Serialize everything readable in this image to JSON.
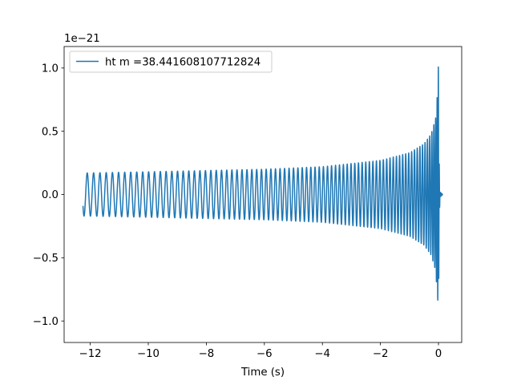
{
  "chart_data": {
    "type": "line",
    "title": "",
    "xlabel": "Time (s)",
    "ylabel": "",
    "y_offset_label": "1e−21",
    "xlim": [
      -12.9,
      0.8
    ],
    "ylim": [
      -1.17,
      1.17
    ],
    "x_ticks": [
      -12,
      -10,
      -8,
      -6,
      -4,
      -2,
      0
    ],
    "x_tick_labels": [
      "−12",
      "−10",
      "−8",
      "−6",
      "−4",
      "−2",
      "0"
    ],
    "y_ticks": [
      -1.0,
      -0.5,
      0.0,
      0.5,
      1.0
    ],
    "y_tick_labels": [
      "−1.0",
      "−0.5",
      "0.0",
      "0.5",
      "1.0"
    ],
    "grid": false,
    "legend_position": "top-left",
    "colors": {
      "series": "#1f77b4",
      "axes": "#000000",
      "background": "#ffffff"
    },
    "series": [
      {
        "name": "ht m =38.441608107712824",
        "color": "#1f77b4",
        "x_start": -12.25,
        "x_merger": 0.0,
        "x_end": 0.15,
        "start_value": -0.09,
        "envelope": {
          "t": [
            -12.25,
            -10,
            -8,
            -6,
            -4,
            -2,
            -1,
            -0.5,
            -0.25,
            -0.1,
            -0.02,
            0.0,
            0.02,
            0.05,
            0.15
          ],
          "amplitude": [
            0.17,
            0.18,
            0.19,
            0.2,
            0.22,
            0.27,
            0.33,
            0.4,
            0.48,
            0.6,
            0.85,
            1.06,
            0.3,
            0.02,
            0.0
          ]
        },
        "frequency_hz": {
          "t": [
            -12.25,
            -8,
            -4,
            -2,
            -1,
            -0.5,
            -0.25,
            -0.1,
            -0.02,
            0.0
          ],
          "value": [
            4.5,
            5.3,
            7.0,
            8.4,
            9.8,
            11.5,
            13.5,
            17.0,
            24.0,
            30.0
          ]
        }
      }
    ]
  }
}
